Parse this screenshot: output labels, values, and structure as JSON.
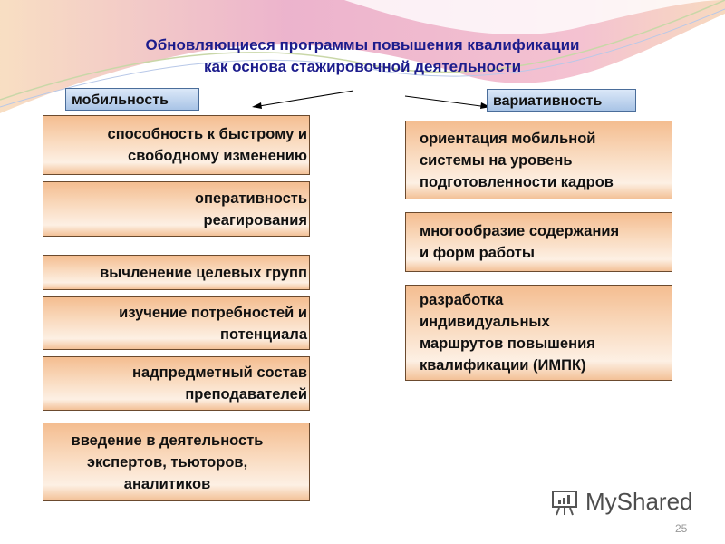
{
  "title": {
    "line1": "Обновляющиеся программы повышения квалификации",
    "line2": "как основа стажировочной деятельности"
  },
  "left": {
    "label": "мобильность",
    "items": [
      [
        "способность к быстрому и",
        "свободному изменению"
      ],
      [
        "оперативность",
        "реагирования"
      ],
      [
        "вычленение целевых групп"
      ],
      [
        "изучение потребностей и",
        "потенциала"
      ],
      [
        "надпредметный состав",
        "преподавателей"
      ],
      [
        "введение в деятельность",
        "экспертов, тьюторов,",
        "аналитиков"
      ]
    ]
  },
  "right": {
    "label": "вариативность",
    "items": [
      [
        "ориентация мобильной",
        "системы на уровень",
        "подготовленности кадров"
      ],
      [
        "многообразие содержания",
        "и форм работы"
      ],
      [
        "разработка",
        "индивидуальных",
        "маршрутов повышения",
        "квалификации (ИМПК)"
      ]
    ]
  },
  "watermark": "MyShared",
  "page_number": "25",
  "colors": {
    "title": "#1c1c8c",
    "box": "#f4bd90",
    "label": "#a9c4e6"
  }
}
